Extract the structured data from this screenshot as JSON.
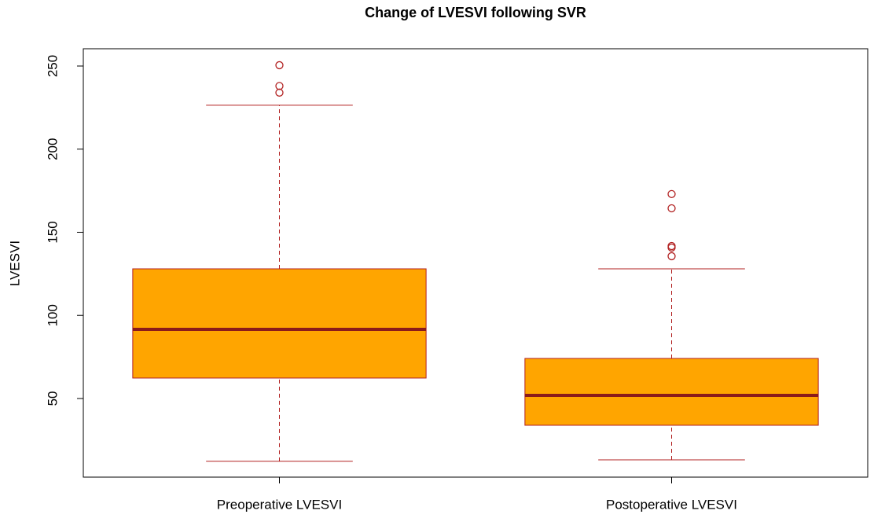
{
  "chart_data": {
    "type": "box",
    "title": "Change of LVESVI following SVR",
    "y_label": "LVESVI",
    "categories": [
      "Preoperative LVESVI",
      "Postoperative LVESVI"
    ],
    "boxes": [
      {
        "whislo": 12.2,
        "q1": 62.3,
        "med": 91.6,
        "q3": 128,
        "whishi": 226.4,
        "fliers": [
          250.5,
          238,
          234
        ]
      },
      {
        "whislo": 13.1,
        "q1": 33.9,
        "med": 51.9,
        "q3": 74.1,
        "whishi": 128,
        "fliers": [
          173,
          164.4,
          141.7,
          140.8,
          135.6
        ]
      }
    ],
    "box_color": "#ffa500",
    "edge_color": "#b22222",
    "median_color": "#8b1a1a",
    "ylim": [
      2.7,
      260.4
    ],
    "yticks": [
      50,
      100,
      150,
      200,
      250
    ],
    "grid": false
  }
}
